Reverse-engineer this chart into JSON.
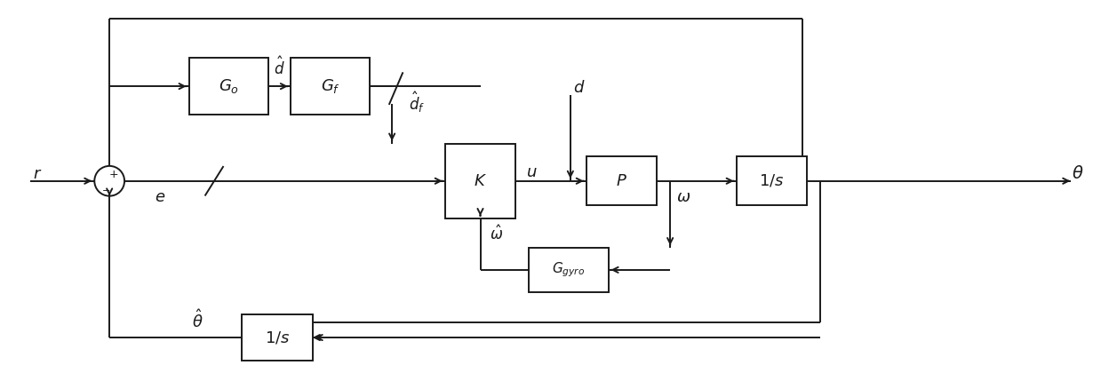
{
  "figsize": [
    12.39,
    4.38
  ],
  "dpi": 100,
  "bg_color": "#ffffff",
  "line_color": "#1a1a1a",
  "box_edge": "#1a1a1a",
  "box_color": "#ffffff"
}
